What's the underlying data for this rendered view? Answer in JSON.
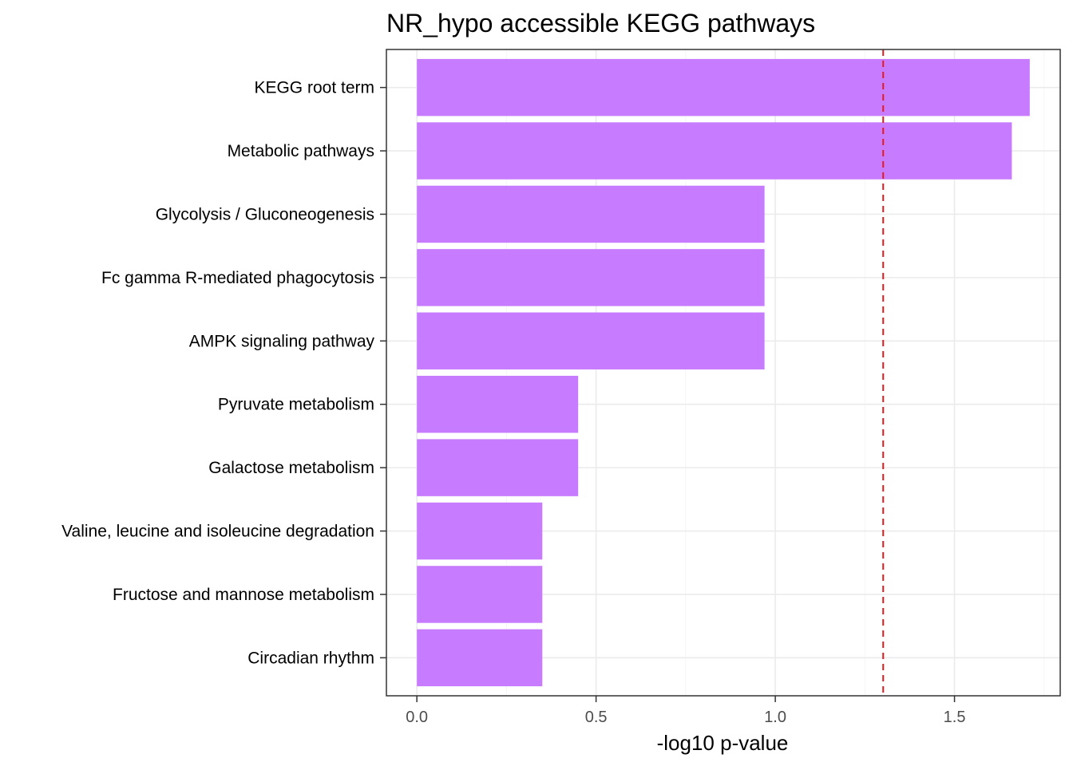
{
  "chart_data": {
    "type": "bar",
    "orientation": "horizontal",
    "title": "NR_hypo accessible KEGG pathways",
    "xlabel": "-log10 p-value",
    "ylabel": "",
    "categories": [
      "KEGG root term",
      "Metabolic pathways",
      "Glycolysis / Gluconeogenesis",
      "Fc gamma R-mediated phagocytosis",
      "AMPK signaling pathway",
      "Pyruvate metabolism",
      "Galactose metabolism",
      "Valine, leucine and isoleucine degradation",
      "Fructose and mannose metabolism",
      "Circadian rhythm"
    ],
    "values": [
      1.71,
      1.66,
      0.97,
      0.97,
      0.97,
      0.45,
      0.45,
      0.35,
      0.35,
      0.35
    ],
    "xlim": [
      -0.085,
      1.795
    ],
    "xticks": [
      0.0,
      0.5,
      1.0,
      1.5
    ],
    "xtick_labels": [
      "0.0",
      "0.5",
      "1.0",
      "1.5"
    ],
    "threshold": 1.301,
    "grid": true,
    "colors": {
      "bar": "#C77CFF",
      "threshold_line": "#E41A1C",
      "panel_border": "#333333",
      "grid_major": "#EBEBEB",
      "grid_minor": "#F5F5F5"
    }
  }
}
